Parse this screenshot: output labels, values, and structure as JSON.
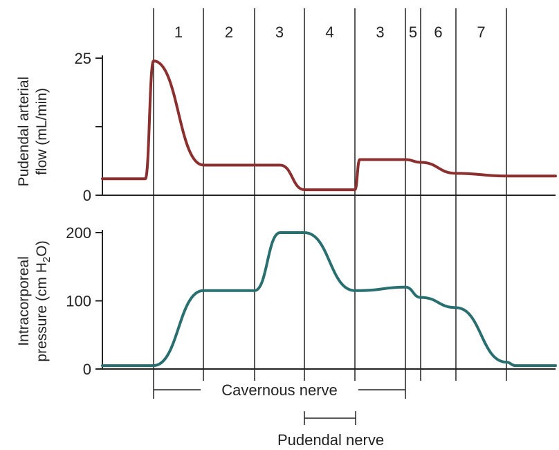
{
  "chart_data": {
    "type": "line",
    "phases": [
      "1",
      "2",
      "3",
      "4",
      "3",
      "5",
      "6",
      "7"
    ],
    "x": [
      0,
      1,
      2,
      3,
      4,
      5,
      6,
      7,
      8,
      9,
      10,
      11,
      12,
      13,
      14,
      15,
      16,
      17,
      18,
      19,
      20,
      21,
      22,
      23
    ],
    "panels": [
      {
        "ylabel_line1": "Pudendal arterial",
        "ylabel_line2": "flow (mL/min)",
        "ylim": [
          0,
          25
        ],
        "yticks": [
          0,
          25
        ],
        "tick_labels": [
          "0",
          "25"
        ],
        "color": "#8b2f2f",
        "values": [
          3,
          3,
          3,
          24.5,
          5.5,
          5.5,
          5.5,
          1,
          1,
          6.5,
          6.5,
          6,
          4,
          3.5,
          3.5,
          3.5,
          3.5,
          3.5,
          3.5,
          3.5,
          3.5,
          3.5,
          3.5,
          3.5
        ]
      },
      {
        "ylabel_line1": "Intracorporeal",
        "ylabel_line2_pre": "pressure (cm H",
        "ylabel_line2_sub": "2",
        "ylabel_line2_post": "O)",
        "ylim": [
          0,
          200
        ],
        "yticks": [
          0,
          100,
          200
        ],
        "tick_labels": [
          "0",
          "100",
          "200"
        ],
        "color": "#2a6f6f",
        "values": [
          5,
          5,
          5,
          5,
          115,
          115,
          200,
          200,
          115,
          115,
          120,
          105,
          90,
          10,
          5,
          5,
          5,
          5,
          5,
          5,
          5,
          5,
          5,
          5
        ]
      }
    ],
    "nerves": [
      {
        "label": "Cavernous nerve"
      },
      {
        "label": "Pudendal nerve"
      }
    ]
  }
}
